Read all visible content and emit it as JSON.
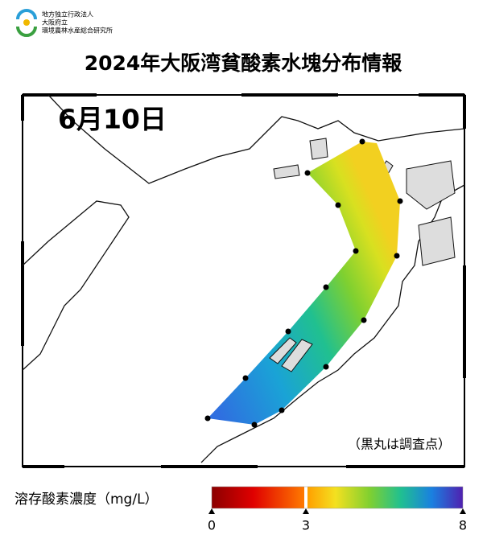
{
  "header": {
    "org_lines": [
      "地方独立行政法人",
      "大阪府立",
      "環境農林水産総合研究所"
    ]
  },
  "title": "2024年大阪湾貧酸素水塊分布情報",
  "map": {
    "date_label": "6月10日",
    "note": "（黒丸は調査点）"
  },
  "colorbar": {
    "label": "溶存酸素濃度（mg/L）",
    "range": [
      0,
      8
    ],
    "ticks": [
      0,
      3,
      8
    ]
  }
}
